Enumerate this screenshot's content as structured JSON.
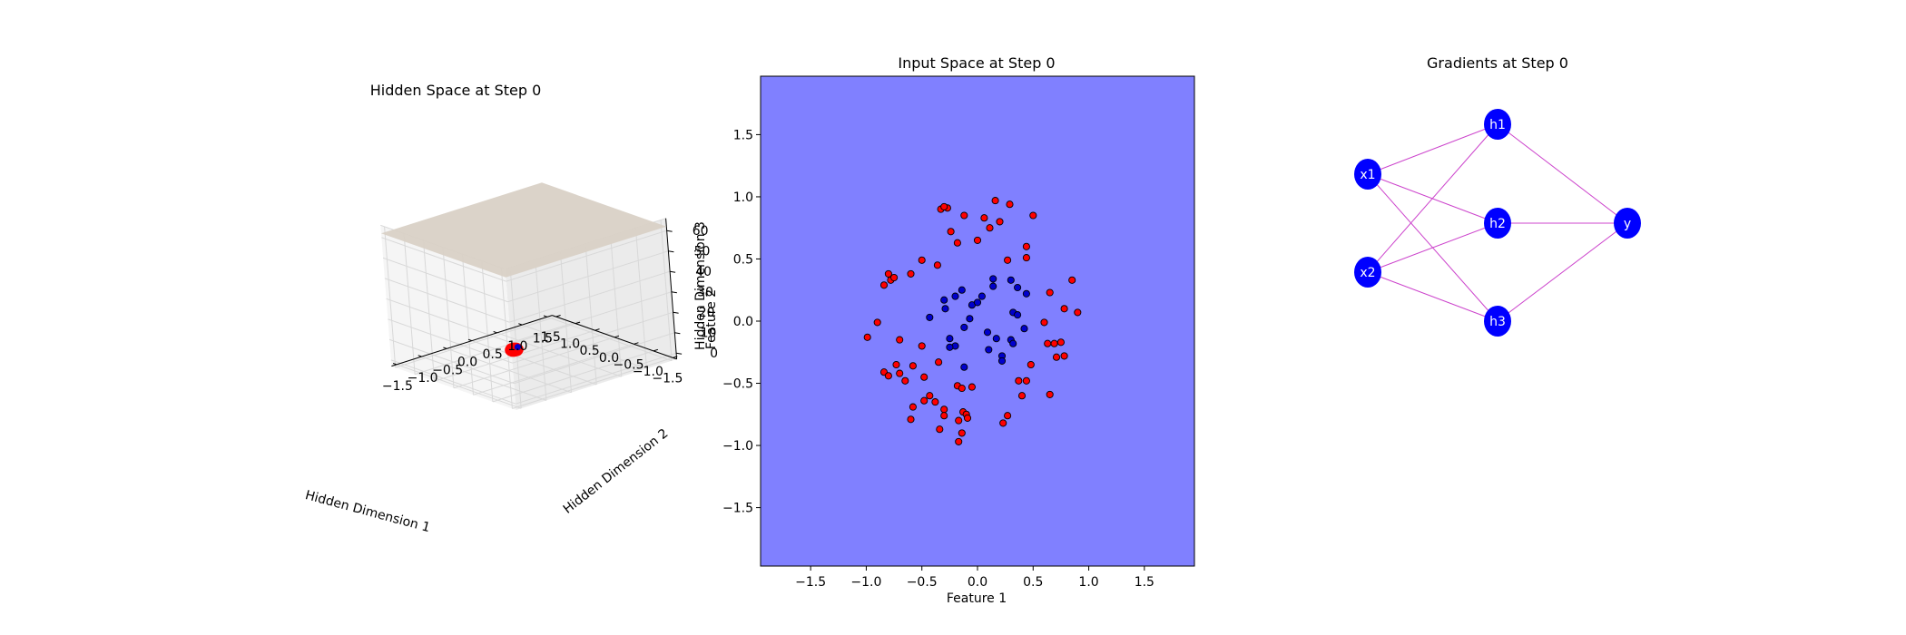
{
  "panels": {
    "hidden_space": {
      "title": "Hidden Space at Step 0",
      "xlabel": "Hidden Dimension 1",
      "ylabel": "Hidden Dimension 2",
      "zlabel": "Hidden Dimension 3",
      "overlap_label": "Feature 2"
    },
    "input_space": {
      "title": "Input Space at Step 0",
      "xlabel": "Feature 1",
      "ylabel": "Feature 2"
    },
    "gradients": {
      "title": "Gradients at Step 0"
    }
  },
  "colors": {
    "class_outer": "#ff0000",
    "class_inner": "#0000cc",
    "decision_region": "#8080ff",
    "plane": "#d9d1c6",
    "node": "#0000ff",
    "edge": "#cc44cc",
    "grid": "#d8d8d8"
  },
  "chart_data": [
    {
      "type": "scatter",
      "subtype": "3d-surface-and-scatter",
      "title": "Hidden Space at Step 0",
      "xlabel": "Hidden Dimension 1",
      "ylabel": "Hidden Dimension 2",
      "zlabel": "Hidden Dimension 3",
      "x_ticks": [
        "−1.5",
        "−1.0",
        "−0.5",
        "0.0",
        "0.5",
        "1.0",
        "1.5"
      ],
      "y_ticks": [
        "−1.5",
        "−1.0",
        "−0.5",
        "0.0",
        "0.5",
        "1.0",
        "1.5"
      ],
      "z_ticks": [
        "0",
        "10",
        "20",
        "30",
        "40",
        "50",
        "60"
      ],
      "xlim": [
        -1.6,
        1.6
      ],
      "ylim": [
        -1.6,
        1.6
      ],
      "zlim": [
        -3,
        66
      ],
      "plane_z": 62,
      "plane_extent": [
        -1.6,
        1.6
      ],
      "points_cluster_center": [
        0.5,
        0.0,
        0
      ],
      "points_cluster_spread": 0.05,
      "grid": true
    },
    {
      "type": "scatter",
      "title": "Input Space at Step 0",
      "xlabel": "Feature 1",
      "ylabel": "Feature 2",
      "xlim": [
        -1.95,
        1.95
      ],
      "ylim": [
        -1.97,
        1.97
      ],
      "x_ticks": [
        "−1.5",
        "−1.0",
        "−0.5",
        "0.0",
        "0.5",
        "1.0",
        "1.5"
      ],
      "y_ticks": [
        "−1.5",
        "−1.0",
        "−0.5",
        "0.0",
        "0.5",
        "1.0",
        "1.5"
      ],
      "background_region": "uniform class 0",
      "series": [
        {
          "color": "#ff0000",
          "points": [
            [
              -0.33,
              0.9
            ],
            [
              -0.27,
              0.91
            ],
            [
              -0.3,
              0.92
            ],
            [
              -0.24,
              0.72
            ],
            [
              -0.12,
              0.85
            ],
            [
              -0.18,
              0.63
            ],
            [
              0.0,
              0.65
            ],
            [
              0.06,
              0.83
            ],
            [
              0.11,
              0.75
            ],
            [
              0.16,
              0.97
            ],
            [
              0.2,
              0.8
            ],
            [
              0.29,
              0.94
            ],
            [
              0.5,
              0.85
            ],
            [
              0.27,
              0.49
            ],
            [
              0.44,
              0.6
            ],
            [
              0.44,
              0.51
            ],
            [
              -0.5,
              0.49
            ],
            [
              -0.36,
              0.45
            ],
            [
              -0.6,
              0.38
            ],
            [
              -0.8,
              0.38
            ],
            [
              -0.78,
              0.33
            ],
            [
              -0.84,
              0.29
            ],
            [
              -0.75,
              0.35
            ],
            [
              -0.9,
              -0.01
            ],
            [
              -0.99,
              -0.13
            ],
            [
              -0.7,
              -0.15
            ],
            [
              -0.5,
              -0.2
            ],
            [
              -0.35,
              -0.33
            ],
            [
              -0.58,
              -0.36
            ],
            [
              -0.73,
              -0.35
            ],
            [
              -0.84,
              -0.41
            ],
            [
              -0.8,
              -0.44
            ],
            [
              -0.7,
              -0.42
            ],
            [
              -0.65,
              -0.48
            ],
            [
              -0.48,
              -0.45
            ],
            [
              -0.58,
              -0.69
            ],
            [
              -0.6,
              -0.79
            ],
            [
              -0.48,
              -0.64
            ],
            [
              -0.43,
              -0.6
            ],
            [
              -0.38,
              -0.65
            ],
            [
              -0.3,
              -0.71
            ],
            [
              -0.3,
              -0.76
            ],
            [
              -0.18,
              -0.52
            ],
            [
              -0.14,
              -0.54
            ],
            [
              -0.05,
              -0.53
            ],
            [
              -0.13,
              -0.73
            ],
            [
              -0.1,
              -0.75
            ],
            [
              -0.09,
              -0.78
            ],
            [
              -0.17,
              -0.8
            ],
            [
              -0.34,
              -0.87
            ],
            [
              -0.14,
              -0.9
            ],
            [
              -0.17,
              -0.97
            ],
            [
              0.23,
              -0.82
            ],
            [
              0.27,
              -0.76
            ],
            [
              0.37,
              -0.48
            ],
            [
              0.44,
              -0.48
            ],
            [
              0.4,
              -0.6
            ],
            [
              0.48,
              -0.35
            ],
            [
              0.63,
              -0.18
            ],
            [
              0.69,
              -0.18
            ],
            [
              0.75,
              -0.17
            ],
            [
              0.78,
              -0.28
            ],
            [
              0.71,
              -0.29
            ],
            [
              0.65,
              -0.59
            ],
            [
              0.6,
              -0.01
            ],
            [
              0.78,
              0.1
            ],
            [
              0.9,
              0.07
            ],
            [
              0.65,
              0.23
            ],
            [
              0.85,
              0.33
            ]
          ]
        },
        {
          "color": "#0000cc",
          "points": [
            [
              -0.3,
              0.17
            ],
            [
              -0.29,
              0.1
            ],
            [
              -0.43,
              0.03
            ],
            [
              -0.2,
              0.2
            ],
            [
              -0.14,
              0.25
            ],
            [
              -0.05,
              0.13
            ],
            [
              0.0,
              0.15
            ],
            [
              0.04,
              0.2
            ],
            [
              0.14,
              0.34
            ],
            [
              0.14,
              0.28
            ],
            [
              0.3,
              0.33
            ],
            [
              0.36,
              0.27
            ],
            [
              0.44,
              0.22
            ],
            [
              0.32,
              0.07
            ],
            [
              0.36,
              0.05
            ],
            [
              -0.25,
              -0.14
            ],
            [
              -0.2,
              -0.2
            ],
            [
              -0.25,
              -0.21
            ],
            [
              -0.12,
              -0.05
            ],
            [
              -0.07,
              0.02
            ],
            [
              0.09,
              -0.09
            ],
            [
              0.17,
              -0.14
            ],
            [
              0.3,
              -0.15
            ],
            [
              0.32,
              -0.18
            ],
            [
              0.42,
              -0.06
            ],
            [
              0.1,
              -0.23
            ],
            [
              0.22,
              -0.28
            ],
            [
              0.22,
              -0.32
            ],
            [
              -0.12,
              -0.37
            ]
          ]
        }
      ]
    },
    {
      "type": "diagram",
      "title": "Gradients at Step 0",
      "nodes": [
        "x1",
        "x2",
        "h1",
        "h2",
        "h3",
        "y"
      ],
      "edges": [
        [
          "x1",
          "h1"
        ],
        [
          "x1",
          "h2"
        ],
        [
          "x1",
          "h3"
        ],
        [
          "x2",
          "h1"
        ],
        [
          "x2",
          "h2"
        ],
        [
          "x2",
          "h3"
        ],
        [
          "h1",
          "y"
        ],
        [
          "h2",
          "y"
        ],
        [
          "h3",
          "y"
        ]
      ]
    }
  ]
}
